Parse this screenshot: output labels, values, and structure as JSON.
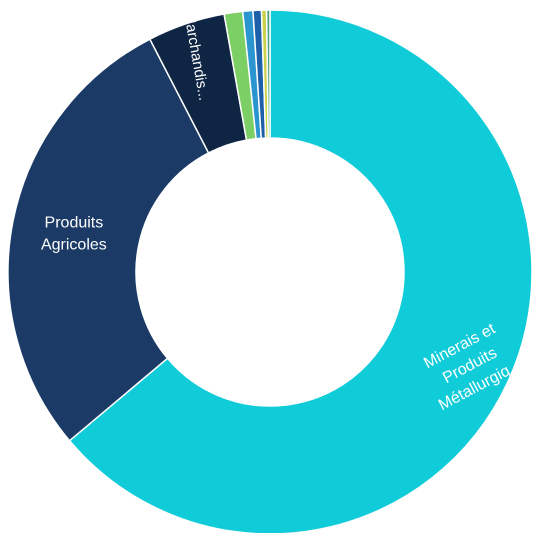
{
  "chart_data": {
    "type": "pie",
    "style": "donut",
    "categories": [
      "Minerais et Produits Métallurgiques",
      "Produits Agricoles",
      "Marchandises",
      "",
      "",
      "",
      "",
      ""
    ],
    "values": [
      61.5,
      27.5,
      4.6,
      1.1,
      0.6,
      0.5,
      0.3,
      0.2
    ],
    "display_labels": [
      [
        "Minerais et",
        "Produits",
        "Métallurgiq..."
      ],
      [
        "Produits",
        "Agricoles"
      ],
      [
        "Marchandis..."
      ],
      [],
      [],
      [],
      [],
      []
    ],
    "colors": [
      "#10cbd8",
      "#1b3a66",
      "#0f2544",
      "#7ccf65",
      "#2a95cf",
      "#1d5fa8",
      "#c9d24a",
      "#4aa37c"
    ],
    "label_color": "#ffffff",
    "start_angle_deg": 0,
    "direction": "clockwise",
    "legend": "none",
    "title": ""
  }
}
